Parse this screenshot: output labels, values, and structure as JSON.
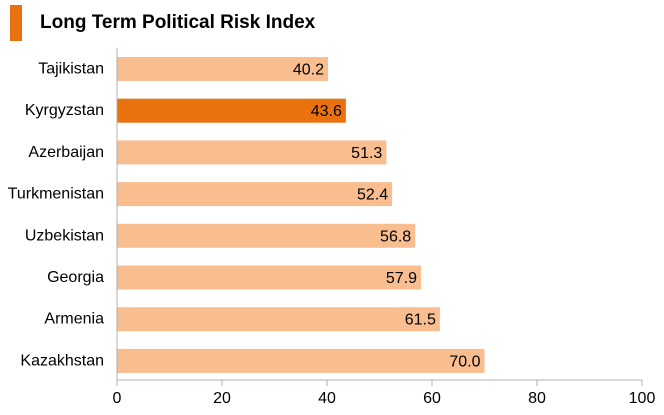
{
  "colors": {
    "bar": "#f9be8f",
    "highlight": "#e9720f",
    "title_marker": "#e9720f",
    "axis": "#b0b0b0"
  },
  "chart_data": {
    "type": "bar",
    "orientation": "horizontal",
    "title": "Long Term Political Risk Index",
    "categories": [
      "Tajikistan",
      "Kyrgyzstan",
      "Azerbaijan",
      "Turkmenistan",
      "Uzbekistan",
      "Georgia",
      "Armenia",
      "Kazakhstan"
    ],
    "values": [
      40.2,
      43.6,
      51.3,
      52.4,
      56.8,
      57.9,
      61.5,
      70.0
    ],
    "value_labels": [
      "40.2",
      "43.6",
      "51.3",
      "52.4",
      "56.8",
      "57.9",
      "61.5",
      "70.0"
    ],
    "highlighted_category": "Kyrgyzstan",
    "xlim": [
      0,
      100
    ],
    "xticks": [
      0,
      20,
      40,
      60,
      80,
      100
    ],
    "xticklabels": [
      "0",
      "20",
      "40",
      "60",
      "80",
      "100"
    ],
    "grid": false,
    "legend": "none"
  }
}
